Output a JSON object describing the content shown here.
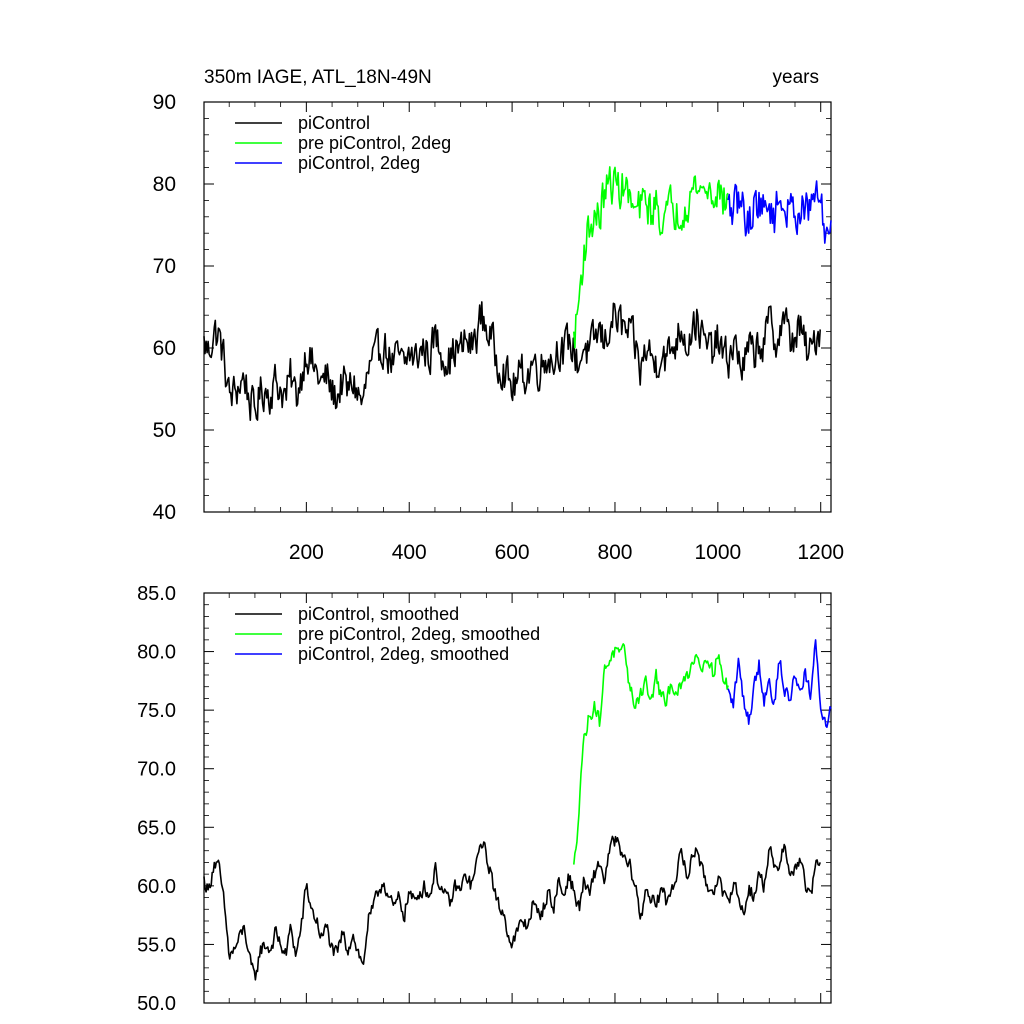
{
  "figure": {
    "title_left": "350m IAGE, ATL_18N-49N",
    "title_right": "years"
  },
  "chart_data": [
    {
      "type": "line",
      "title": "350m IAGE, ATL_18N-49N",
      "units": "years",
      "xlim": [
        1,
        1220
      ],
      "ylim": [
        40,
        90
      ],
      "x_ticks": [
        200,
        400,
        600,
        800,
        1000,
        1200
      ],
      "x_tick_labels": [
        "200",
        "400",
        "600",
        "800",
        "1000",
        "1200"
      ],
      "y_ticks": [
        40,
        50,
        60,
        70,
        80,
        90
      ],
      "y_tick_labels": [
        "40",
        "50",
        "60",
        "70",
        "80",
        "90"
      ],
      "grid": false,
      "legend_position": "top-left",
      "noise": 2.2,
      "series": [
        {
          "name": "piControl",
          "color": "#000000",
          "x": [
            1,
            10,
            20,
            30,
            40,
            50,
            60,
            70,
            80,
            90,
            100,
            110,
            120,
            130,
            140,
            150,
            160,
            170,
            180,
            190,
            200,
            210,
            220,
            230,
            240,
            250,
            260,
            270,
            280,
            290,
            300,
            310,
            320,
            330,
            340,
            350,
            360,
            370,
            380,
            390,
            400,
            410,
            420,
            430,
            440,
            450,
            460,
            470,
            480,
            490,
            500,
            510,
            520,
            530,
            540,
            550,
            560,
            570,
            580,
            590,
            600,
            610,
            620,
            630,
            640,
            650,
            660,
            670,
            680,
            690,
            700,
            710,
            720,
            730,
            740,
            750,
            760,
            770,
            780,
            790,
            800,
            810,
            820,
            830,
            840,
            850,
            860,
            870,
            880,
            890,
            900,
            910,
            920,
            930,
            940,
            950,
            960,
            970,
            980,
            990,
            1000,
            1010,
            1020,
            1030,
            1040,
            1050,
            1060,
            1070,
            1080,
            1090,
            1100,
            1110,
            1120,
            1130,
            1140,
            1150,
            1160,
            1170,
            1180,
            1190,
            1200
          ],
          "y": [
            60.5,
            59.5,
            62.0,
            61.5,
            58.5,
            54.0,
            54.5,
            55.5,
            56.5,
            53.5,
            52.0,
            54.5,
            55.0,
            54.5,
            56.0,
            55.0,
            54.0,
            56.5,
            54.0,
            56.5,
            60.0,
            58.0,
            57.0,
            55.5,
            56.5,
            54.5,
            54.0,
            56.0,
            54.5,
            56.0,
            54.5,
            53.0,
            57.0,
            58.0,
            59.5,
            60.5,
            59.0,
            58.0,
            59.0,
            57.5,
            59.5,
            58.5,
            59.5,
            60.0,
            59.0,
            61.5,
            60.0,
            59.0,
            58.5,
            60.0,
            59.5,
            61.0,
            60.0,
            61.5,
            64.0,
            62.5,
            61.0,
            58.5,
            58.0,
            56.5,
            55.0,
            56.0,
            57.0,
            56.5,
            58.5,
            57.5,
            58.0,
            59.5,
            58.0,
            60.5,
            59.0,
            61.0,
            59.5,
            58.0,
            60.5,
            59.0,
            61.0,
            62.0,
            60.5,
            63.0,
            64.0,
            63.0,
            62.0,
            61.5,
            60.0,
            57.0,
            60.0,
            59.0,
            58.0,
            60.0,
            58.5,
            60.0,
            61.0,
            63.0,
            60.5,
            62.5,
            63.5,
            61.0,
            60.0,
            59.5,
            61.0,
            59.0,
            58.5,
            60.5,
            59.0,
            57.5,
            60.0,
            59.0,
            61.0,
            60.0,
            63.5,
            61.0,
            62.0,
            64.0,
            60.5,
            61.5,
            62.5,
            60.0,
            59.0,
            61.5,
            62.5
          ]
        },
        {
          "name": "pre piControl, 2deg",
          "color": "#00ff00",
          "x": [
            720,
            725,
            730,
            735,
            740,
            745,
            750,
            760,
            770,
            780,
            790,
            800,
            810,
            820,
            830,
            840,
            850,
            860,
            870,
            880,
            890,
            900,
            910,
            920,
            930,
            940,
            950,
            960,
            970,
            980,
            990,
            1000,
            1010,
            1020
          ],
          "y": [
            61.0,
            63.0,
            66.0,
            69.0,
            72.0,
            73.5,
            74.5,
            76.0,
            76.0,
            79.0,
            80.0,
            80.0,
            79.5,
            80.0,
            77.5,
            76.5,
            77.0,
            78.0,
            76.5,
            77.5,
            76.0,
            76.0,
            77.5,
            76.5,
            77.0,
            78.0,
            79.0,
            80.0,
            79.0,
            79.5,
            78.5,
            79.5,
            78.0,
            77.5
          ]
        },
        {
          "name": "piControl, 2deg",
          "color": "#0000ff",
          "x": [
            1020,
            1030,
            1040,
            1050,
            1060,
            1070,
            1080,
            1090,
            1100,
            1110,
            1120,
            1130,
            1140,
            1150,
            1160,
            1170,
            1180,
            1190,
            1200,
            1210,
            1220
          ],
          "y": [
            77.0,
            76.5,
            78.0,
            77.0,
            75.0,
            77.5,
            78.0,
            76.5,
            77.5,
            76.0,
            78.5,
            77.0,
            76.5,
            77.0,
            76.5,
            77.5,
            76.0,
            80.0,
            77.0,
            74.0,
            75.5
          ]
        }
      ]
    },
    {
      "type": "line",
      "title": "",
      "xlim": [
        1,
        1220
      ],
      "ylim": [
        50,
        85
      ],
      "x_ticks": [
        200,
        400,
        600,
        800,
        1000,
        1200
      ],
      "x_tick_labels": [],
      "y_ticks": [
        50,
        55,
        60,
        65,
        70,
        75,
        80,
        85
      ],
      "y_tick_labels": [
        "50.0",
        "55.0",
        "60.0",
        "65.0",
        "70.0",
        "75.0",
        "80.0",
        "85.0"
      ],
      "grid": false,
      "legend_position": "top-left",
      "noise": 0.6,
      "series": [
        {
          "name": "piControl, smoothed",
          "color": "#000000",
          "x": [
            1,
            10,
            20,
            30,
            40,
            50,
            60,
            70,
            80,
            90,
            100,
            110,
            120,
            130,
            140,
            150,
            160,
            170,
            180,
            190,
            200,
            210,
            220,
            230,
            240,
            250,
            260,
            270,
            280,
            290,
            300,
            310,
            320,
            330,
            340,
            350,
            360,
            370,
            380,
            390,
            400,
            410,
            420,
            430,
            440,
            450,
            460,
            470,
            480,
            490,
            500,
            510,
            520,
            530,
            540,
            550,
            560,
            570,
            580,
            590,
            600,
            610,
            620,
            630,
            640,
            650,
            660,
            670,
            680,
            690,
            700,
            710,
            720,
            730,
            740,
            750,
            760,
            770,
            780,
            790,
            800,
            810,
            820,
            830,
            840,
            850,
            860,
            870,
            880,
            890,
            900,
            910,
            920,
            930,
            940,
            950,
            960,
            970,
            980,
            990,
            1000,
            1010,
            1020,
            1030,
            1040,
            1050,
            1060,
            1070,
            1080,
            1090,
            1100,
            1110,
            1120,
            1130,
            1140,
            1150,
            1160,
            1170,
            1180,
            1190,
            1200
          ],
          "y": [
            60.5,
            59.5,
            62.0,
            61.5,
            58.5,
            54.0,
            54.5,
            55.5,
            56.5,
            53.5,
            52.0,
            54.5,
            55.0,
            54.5,
            56.0,
            55.0,
            54.0,
            56.5,
            54.0,
            56.5,
            60.0,
            58.0,
            57.0,
            55.5,
            56.5,
            54.5,
            54.0,
            56.0,
            54.5,
            56.0,
            54.5,
            53.0,
            57.0,
            58.0,
            59.5,
            60.5,
            59.0,
            58.0,
            59.0,
            57.5,
            59.5,
            58.5,
            59.5,
            60.0,
            59.0,
            61.5,
            60.0,
            59.0,
            58.5,
            60.0,
            59.5,
            61.0,
            60.0,
            61.5,
            64.0,
            62.5,
            61.0,
            58.5,
            58.0,
            56.5,
            55.0,
            56.0,
            57.0,
            56.5,
            58.5,
            57.5,
            58.0,
            59.5,
            58.0,
            60.5,
            59.0,
            61.0,
            59.5,
            58.0,
            60.5,
            59.0,
            61.0,
            62.0,
            60.5,
            63.0,
            64.0,
            63.0,
            62.0,
            61.5,
            60.0,
            57.0,
            60.0,
            59.0,
            58.0,
            60.0,
            58.5,
            60.0,
            61.0,
            63.0,
            60.5,
            62.5,
            63.5,
            61.0,
            60.0,
            59.5,
            61.0,
            59.0,
            58.5,
            60.5,
            59.0,
            57.5,
            60.0,
            59.0,
            61.0,
            60.0,
            63.5,
            61.0,
            62.0,
            64.0,
            60.5,
            61.5,
            62.5,
            60.0,
            59.0,
            61.5,
            62.5
          ]
        },
        {
          "name": "pre piControl, 2deg, smoothed",
          "color": "#00ff00",
          "x": [
            720,
            725,
            730,
            735,
            740,
            745,
            750,
            760,
            770,
            780,
            790,
            800,
            810,
            820,
            830,
            840,
            850,
            860,
            870,
            880,
            890,
            900,
            910,
            920,
            930,
            940,
            950,
            960,
            970,
            980,
            990,
            1000,
            1010,
            1020
          ],
          "y": [
            61.5,
            63.5,
            67.0,
            70.5,
            72.5,
            73.5,
            74.5,
            75.5,
            74.0,
            78.5,
            79.5,
            80.0,
            79.5,
            80.0,
            76.5,
            75.5,
            76.5,
            77.5,
            75.5,
            78.0,
            76.0,
            75.5,
            77.5,
            76.5,
            77.0,
            78.0,
            79.0,
            80.0,
            78.5,
            80.0,
            78.0,
            80.0,
            77.5,
            77.0
          ]
        },
        {
          "name": "piControl, 2deg, smoothed",
          "color": "#0000ff",
          "x": [
            1020,
            1030,
            1040,
            1050,
            1060,
            1070,
            1080,
            1090,
            1100,
            1110,
            1120,
            1130,
            1140,
            1150,
            1160,
            1170,
            1180,
            1190,
            1200,
            1210,
            1220
          ],
          "y": [
            76.5,
            75.5,
            79.0,
            76.0,
            74.0,
            77.0,
            79.0,
            76.0,
            77.5,
            75.5,
            79.5,
            76.5,
            76.0,
            78.0,
            76.5,
            78.5,
            76.0,
            80.5,
            75.5,
            73.5,
            75.5
          ]
        }
      ]
    }
  ]
}
